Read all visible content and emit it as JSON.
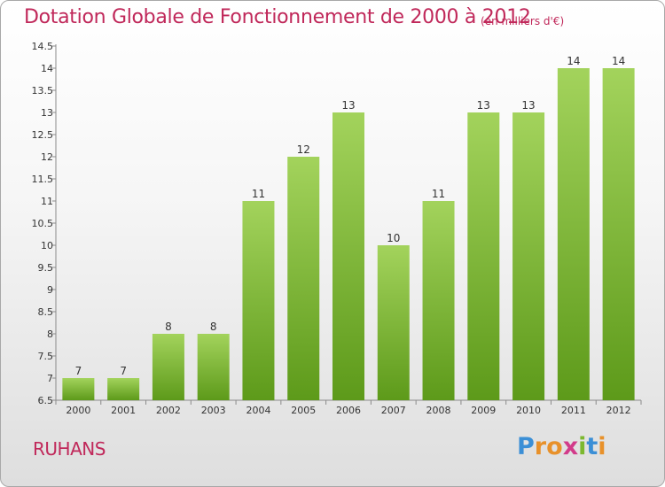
{
  "chart_data": {
    "type": "bar",
    "title": "Dotation Globale de Fonctionnement de 2000 à 2012",
    "subtitle": "(en milliers d'€)",
    "categories": [
      "2000",
      "2001",
      "2002",
      "2003",
      "2004",
      "2005",
      "2006",
      "2007",
      "2008",
      "2009",
      "2010",
      "2011",
      "2012"
    ],
    "values": [
      7,
      7,
      8,
      8,
      11,
      12,
      13,
      10,
      11,
      13,
      13,
      14,
      14
    ],
    "value_labels": [
      "7",
      "7",
      "8",
      "8",
      "11",
      "12",
      "13",
      "10",
      "11",
      "13",
      "13",
      "14",
      "14"
    ],
    "ylim": [
      6.5,
      14.5
    ],
    "yticks": [
      6.5,
      7,
      7.5,
      8,
      8.5,
      9,
      9.5,
      10,
      10.5,
      11,
      11.5,
      12,
      12.5,
      13,
      13.5,
      14,
      14.5
    ],
    "ytick_labels": [
      "6.5",
      "7",
      "7.5",
      "8",
      "8.5",
      "9",
      "9.5",
      "10",
      "10.5",
      "11",
      "11.5",
      "12",
      "12.5",
      "13",
      "13.5",
      "14",
      "14.5"
    ],
    "xlabel": "",
    "ylabel": "",
    "grid": false,
    "legend": "none"
  },
  "footer": {
    "town": "RUHANS",
    "logo_letters": [
      "P",
      "r",
      "o",
      "x",
      "i",
      "t",
      "i"
    ],
    "logo_colors": [
      "#3b8fd6",
      "#e8912a",
      "#e8912a",
      "#d23b8a",
      "#7cb82f",
      "#3b8fd6",
      "#e8912a"
    ]
  },
  "colors": {
    "accent": "#c0285a",
    "bar_top": "#a3d35c",
    "bar_bottom": "#5d9a1a",
    "axis": "#8a8a8a"
  }
}
